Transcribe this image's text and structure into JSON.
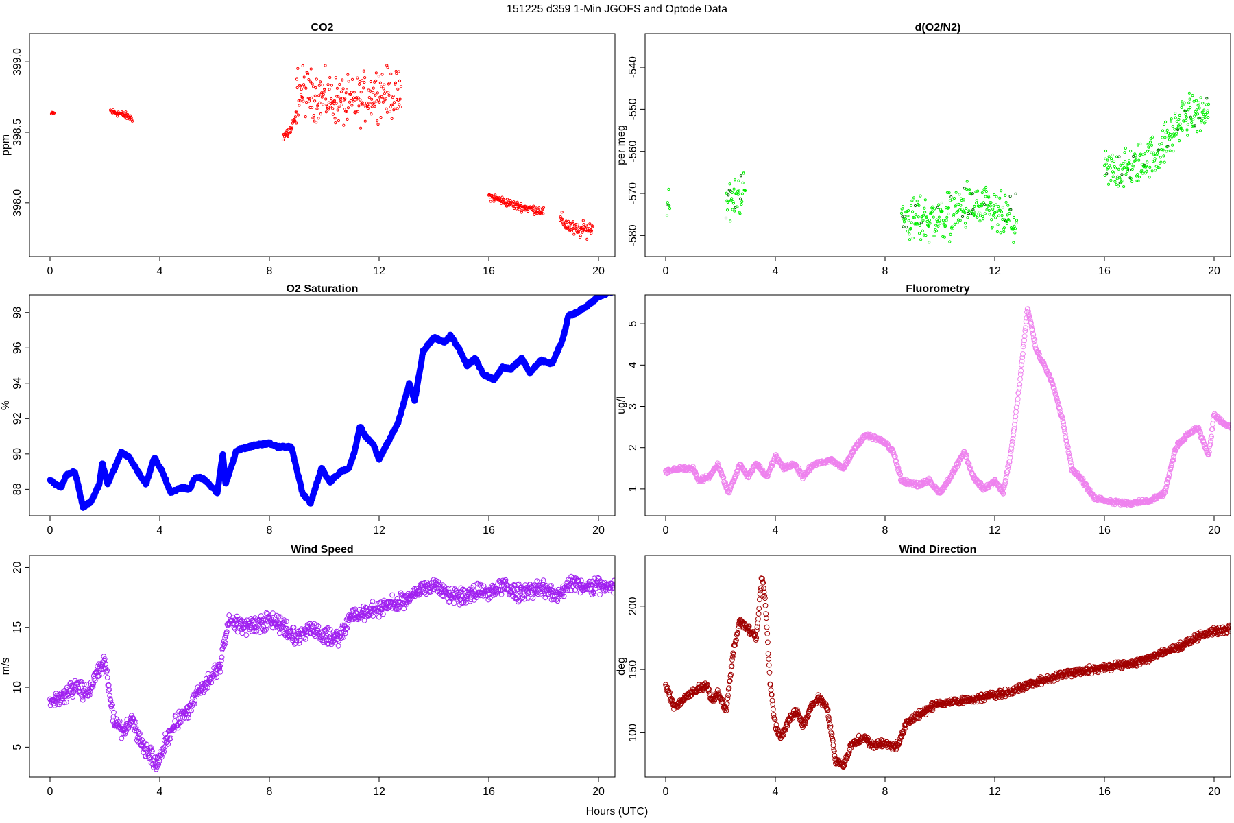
{
  "figure": {
    "title": "151225   d359   1-Min  JGOFS and Optode Data",
    "xlabel": "Hours (UTC)"
  },
  "chart_data": [
    {
      "type": "scatter",
      "title": "CO2",
      "ylabel": "ppm",
      "color": "#ff0000",
      "marker": "small-circle",
      "xlim": [
        -0.75,
        20.6
      ],
      "ylim": [
        397.62,
        399.2
      ],
      "xticks": [
        0,
        4,
        8,
        12,
        16,
        20
      ],
      "yticks": [
        398.0,
        398.5,
        399.0
      ],
      "ytick_labels": [
        "398.0",
        "398.5",
        "399.0"
      ],
      "segments": [
        {
          "x_start": 0.05,
          "x_end": 0.15,
          "anchors": [
            [
              0.05,
              398.63
            ],
            [
              0.15,
              398.64
            ]
          ],
          "noise": 0.01
        },
        {
          "x_start": 2.2,
          "x_end": 3.0,
          "anchors": [
            [
              2.2,
              398.65
            ],
            [
              2.6,
              398.63
            ],
            [
              3.0,
              398.6
            ]
          ],
          "noise": 0.02
        },
        {
          "x_start": 8.5,
          "x_end": 9.0,
          "anchors": [
            [
              8.5,
              398.47
            ],
            [
              8.8,
              398.52
            ],
            [
              9.0,
              398.62
            ]
          ],
          "noise": 0.04
        },
        {
          "x_start": 9.0,
          "x_end": 12.8,
          "anchors": [
            [
              9.0,
              398.8
            ],
            [
              10.0,
              398.75
            ],
            [
              11.0,
              398.7
            ],
            [
              12.0,
              398.8
            ],
            [
              12.8,
              398.75
            ]
          ],
          "noise": 0.14
        },
        {
          "x_start": 16.0,
          "x_end": 18.0,
          "anchors": [
            [
              16.0,
              398.05
            ],
            [
              17.0,
              397.98
            ],
            [
              18.0,
              397.94
            ]
          ],
          "noise": 0.025
        },
        {
          "x_start": 18.6,
          "x_end": 19.8,
          "anchors": [
            [
              18.6,
              397.88
            ],
            [
              19.2,
              397.8
            ],
            [
              19.8,
              397.82
            ]
          ],
          "noise": 0.045
        }
      ]
    },
    {
      "type": "scatter",
      "title": "d(O2/N2)",
      "ylabel": "per meg",
      "color": "#00ee00",
      "marker": "small-circle",
      "xlim": [
        -0.75,
        20.6
      ],
      "ylim": [
        -585,
        -532
      ],
      "xticks": [
        0,
        4,
        8,
        12,
        16,
        20
      ],
      "yticks": [
        -580,
        -570,
        -560,
        -550,
        -540
      ],
      "ytick_labels": [
        "-580",
        "-570",
        "-560",
        "-550",
        "-540"
      ],
      "segments": [
        {
          "x_start": 0.05,
          "x_end": 0.15,
          "anchors": [
            [
              0.05,
              -572
            ],
            [
              0.15,
              -572
            ]
          ],
          "noise": 3.5
        },
        {
          "x_start": 2.2,
          "x_end": 2.9,
          "anchors": [
            [
              2.2,
              -571
            ],
            [
              2.5,
              -572
            ],
            [
              2.9,
              -568
            ]
          ],
          "noise": 4
        },
        {
          "x_start": 8.6,
          "x_end": 12.8,
          "anchors": [
            [
              8.6,
              -576
            ],
            [
              10.0,
              -576
            ],
            [
              11.0,
              -573
            ],
            [
              12.0,
              -575
            ],
            [
              12.8,
              -577
            ]
          ],
          "noise": 4.5
        },
        {
          "x_start": 16.0,
          "x_end": 19.8,
          "anchors": [
            [
              16.0,
              -565
            ],
            [
              17.0,
              -564
            ],
            [
              18.0,
              -560
            ],
            [
              19.0,
              -551
            ],
            [
              19.8,
              -551
            ]
          ],
          "noise": 4
        }
      ]
    },
    {
      "type": "line",
      "title": "O2 Saturation",
      "ylabel": "%",
      "color": "#0000ff",
      "marker": "thick-line",
      "xlim": [
        -0.75,
        20.6
      ],
      "ylim": [
        86.5,
        99.0
      ],
      "xticks": [
        0,
        4,
        8,
        12,
        16,
        20
      ],
      "yticks": [
        88,
        90,
        92,
        94,
        96,
        98
      ],
      "ytick_labels": [
        "88",
        "90",
        "92",
        "94",
        "96",
        "98"
      ],
      "values": [
        [
          0,
          88.5
        ],
        [
          0.4,
          88.1
        ],
        [
          0.6,
          88.8
        ],
        [
          0.9,
          89.0
        ],
        [
          1.0,
          88.4
        ],
        [
          1.2,
          87.0
        ],
        [
          1.5,
          87.3
        ],
        [
          1.8,
          88.3
        ],
        [
          1.9,
          89.5
        ],
        [
          2.1,
          88.3
        ],
        [
          2.3,
          89.0
        ],
        [
          2.6,
          90.1
        ],
        [
          2.9,
          89.8
        ],
        [
          3.2,
          89.0
        ],
        [
          3.5,
          88.3
        ],
        [
          3.8,
          89.8
        ],
        [
          4.1,
          89.0
        ],
        [
          4.4,
          87.8
        ],
        [
          4.8,
          88.1
        ],
        [
          5.1,
          88.0
        ],
        [
          5.3,
          88.7
        ],
        [
          5.6,
          88.6
        ],
        [
          6.1,
          87.8
        ],
        [
          6.3,
          90.0
        ],
        [
          6.4,
          88.3
        ],
        [
          6.8,
          90.2
        ],
        [
          7.5,
          90.5
        ],
        [
          8.0,
          90.6
        ],
        [
          8.3,
          90.4
        ],
        [
          8.8,
          90.4
        ],
        [
          9.2,
          87.8
        ],
        [
          9.5,
          87.2
        ],
        [
          9.9,
          89.2
        ],
        [
          10.2,
          88.4
        ],
        [
          10.6,
          89.0
        ],
        [
          10.9,
          89.2
        ],
        [
          11.1,
          90.1
        ],
        [
          11.3,
          91.6
        ],
        [
          11.5,
          91.0
        ],
        [
          11.8,
          90.5
        ],
        [
          12.0,
          89.7
        ],
        [
          12.3,
          90.6
        ],
        [
          12.7,
          91.8
        ],
        [
          13.1,
          94.0
        ],
        [
          13.3,
          93.0
        ],
        [
          13.6,
          95.8
        ],
        [
          14.0,
          96.6
        ],
        [
          14.4,
          96.3
        ],
        [
          14.6,
          96.7
        ],
        [
          14.9,
          96.0
        ],
        [
          15.2,
          95.0
        ],
        [
          15.5,
          95.4
        ],
        [
          15.8,
          94.5
        ],
        [
          16.2,
          94.2
        ],
        [
          16.5,
          94.9
        ],
        [
          16.8,
          94.8
        ],
        [
          17.2,
          95.4
        ],
        [
          17.5,
          94.6
        ],
        [
          17.9,
          95.3
        ],
        [
          18.3,
          95.1
        ],
        [
          18.7,
          96.5
        ],
        [
          18.9,
          97.8
        ],
        [
          19.2,
          98.0
        ],
        [
          19.6,
          98.4
        ],
        [
          20.0,
          98.9
        ],
        [
          20.5,
          99.2
        ]
      ]
    },
    {
      "type": "line",
      "title": "Fluorometry",
      "ylabel": "ug/l",
      "color": "#ee82ee",
      "marker": "open-circle",
      "xlim": [
        -0.75,
        20.6
      ],
      "ylim": [
        0.35,
        5.7
      ],
      "xticks": [
        0,
        4,
        8,
        12,
        16,
        20
      ],
      "yticks": [
        1,
        2,
        3,
        4,
        5
      ],
      "ytick_labels": [
        "1",
        "2",
        "3",
        "4",
        "5"
      ],
      "values": [
        [
          0,
          1.4
        ],
        [
          0.5,
          1.5
        ],
        [
          1.0,
          1.5
        ],
        [
          1.2,
          1.2
        ],
        [
          1.6,
          1.3
        ],
        [
          1.9,
          1.6
        ],
        [
          2.3,
          0.9
        ],
        [
          2.7,
          1.6
        ],
        [
          3.0,
          1.3
        ],
        [
          3.3,
          1.6
        ],
        [
          3.7,
          1.3
        ],
        [
          4.0,
          1.8
        ],
        [
          4.3,
          1.5
        ],
        [
          4.7,
          1.6
        ],
        [
          5.0,
          1.3
        ],
        [
          5.4,
          1.6
        ],
        [
          6.0,
          1.7
        ],
        [
          6.5,
          1.5
        ],
        [
          6.8,
          1.9
        ],
        [
          7.3,
          2.3
        ],
        [
          7.8,
          2.2
        ],
        [
          8.0,
          2.1
        ],
        [
          8.3,
          1.9
        ],
        [
          8.6,
          1.2
        ],
        [
          9.2,
          1.1
        ],
        [
          9.6,
          1.2
        ],
        [
          10.0,
          0.9
        ],
        [
          10.4,
          1.3
        ],
        [
          10.9,
          1.9
        ],
        [
          11.2,
          1.3
        ],
        [
          11.6,
          1.0
        ],
        [
          12.0,
          1.2
        ],
        [
          12.3,
          0.9
        ],
        [
          12.6,
          1.9
        ],
        [
          12.9,
          3.5
        ],
        [
          13.2,
          5.4
        ],
        [
          13.5,
          4.4
        ],
        [
          13.8,
          4.0
        ],
        [
          14.1,
          3.6
        ],
        [
          14.5,
          2.6
        ],
        [
          14.8,
          1.5
        ],
        [
          15.2,
          1.2
        ],
        [
          15.6,
          0.8
        ],
        [
          16.2,
          0.7
        ],
        [
          17.0,
          0.65
        ],
        [
          17.6,
          0.7
        ],
        [
          18.2,
          0.9
        ],
        [
          18.6,
          2.0
        ],
        [
          19.0,
          2.3
        ],
        [
          19.4,
          2.5
        ],
        [
          19.8,
          1.8
        ],
        [
          20.0,
          2.8
        ],
        [
          20.3,
          2.6
        ],
        [
          20.6,
          2.5
        ]
      ]
    },
    {
      "type": "line",
      "title": "Wind Speed",
      "ylabel": "m/s",
      "color": "#a020f0",
      "marker": "open-circle",
      "xlim": [
        -0.75,
        20.6
      ],
      "ylim": [
        2.5,
        21.0
      ],
      "xticks": [
        0,
        4,
        8,
        12,
        16,
        20
      ],
      "yticks": [
        5,
        10,
        15,
        20
      ],
      "ytick_labels": [
        "5",
        "10",
        "15",
        "20"
      ],
      "values": [
        [
          0,
          8.7
        ],
        [
          0.5,
          9.3
        ],
        [
          1.0,
          9.9
        ],
        [
          1.4,
          9.5
        ],
        [
          1.7,
          11.2
        ],
        [
          2.0,
          12.0
        ],
        [
          2.3,
          7.5
        ],
        [
          2.6,
          6.2
        ],
        [
          3.0,
          7.2
        ],
        [
          3.3,
          5.3
        ],
        [
          3.6,
          4.5
        ],
        [
          3.9,
          3.6
        ],
        [
          4.2,
          5.5
        ],
        [
          4.6,
          7.0
        ],
        [
          5.0,
          8.0
        ],
        [
          5.4,
          9.5
        ],
        [
          5.8,
          10.5
        ],
        [
          6.2,
          11.8
        ],
        [
          6.5,
          15.5
        ],
        [
          7.0,
          15.2
        ],
        [
          7.5,
          15.0
        ],
        [
          8.0,
          15.8
        ],
        [
          8.5,
          15.0
        ],
        [
          9.0,
          14.2
        ],
        [
          9.5,
          15.0
        ],
        [
          10.0,
          14.3
        ],
        [
          10.5,
          14.0
        ],
        [
          11.0,
          16.0
        ],
        [
          11.5,
          16.2
        ],
        [
          12.0,
          16.6
        ],
        [
          12.5,
          17.0
        ],
        [
          13.0,
          17.2
        ],
        [
          13.5,
          18.2
        ],
        [
          14.0,
          18.5
        ],
        [
          14.5,
          17.8
        ],
        [
          15.0,
          17.6
        ],
        [
          15.5,
          18.0
        ],
        [
          16.0,
          17.8
        ],
        [
          16.5,
          18.5
        ],
        [
          17.0,
          17.8
        ],
        [
          17.5,
          18.2
        ],
        [
          18.0,
          18.2
        ],
        [
          18.5,
          17.7
        ],
        [
          19.0,
          18.8
        ],
        [
          19.5,
          18.3
        ],
        [
          20.0,
          18.5
        ],
        [
          20.6,
          18.3
        ]
      ]
    },
    {
      "type": "line",
      "title": "Wind Direction",
      "ylabel": "deg",
      "color": "#a00000",
      "marker": "open-circle",
      "xlim": [
        -0.75,
        20.6
      ],
      "ylim": [
        65,
        240
      ],
      "xticks": [
        0,
        4,
        8,
        12,
        16,
        20
      ],
      "yticks": [
        100,
        150,
        200
      ],
      "ytick_labels": [
        "100",
        "150",
        "200"
      ],
      "values": [
        [
          0,
          138
        ],
        [
          0.3,
          120
        ],
        [
          0.7,
          128
        ],
        [
          1.2,
          135
        ],
        [
          1.5,
          138
        ],
        [
          1.7,
          125
        ],
        [
          1.9,
          132
        ],
        [
          2.2,
          118
        ],
        [
          2.5,
          168
        ],
        [
          2.7,
          188
        ],
        [
          3.0,
          183
        ],
        [
          3.3,
          175
        ],
        [
          3.5,
          222
        ],
        [
          3.6,
          212
        ],
        [
          3.7,
          180
        ],
        [
          3.8,
          140
        ],
        [
          4.0,
          105
        ],
        [
          4.2,
          96
        ],
        [
          4.5,
          110
        ],
        [
          4.8,
          118
        ],
        [
          5.0,
          105
        ],
        [
          5.3,
          120
        ],
        [
          5.6,
          128
        ],
        [
          5.9,
          118
        ],
        [
          6.2,
          78
        ],
        [
          6.5,
          75
        ],
        [
          6.8,
          92
        ],
        [
          7.2,
          96
        ],
        [
          7.6,
          90
        ],
        [
          8.0,
          92
        ],
        [
          8.4,
          88
        ],
        [
          8.8,
          108
        ],
        [
          9.3,
          115
        ],
        [
          9.8,
          122
        ],
        [
          10.3,
          124
        ],
        [
          11.0,
          126
        ],
        [
          11.5,
          128
        ],
        [
          12.0,
          130
        ],
        [
          12.5,
          132
        ],
        [
          13.0,
          136
        ],
        [
          13.5,
          140
        ],
        [
          14.0,
          143
        ],
        [
          14.5,
          146
        ],
        [
          15.0,
          148
        ],
        [
          15.5,
          150
        ],
        [
          16.0,
          151
        ],
        [
          16.5,
          153
        ],
        [
          17.0,
          155
        ],
        [
          17.5,
          158
        ],
        [
          18.0,
          162
        ],
        [
          18.5,
          166
        ],
        [
          19.0,
          171
        ],
        [
          19.5,
          177
        ],
        [
          20.0,
          180
        ],
        [
          20.6,
          182
        ]
      ]
    }
  ]
}
